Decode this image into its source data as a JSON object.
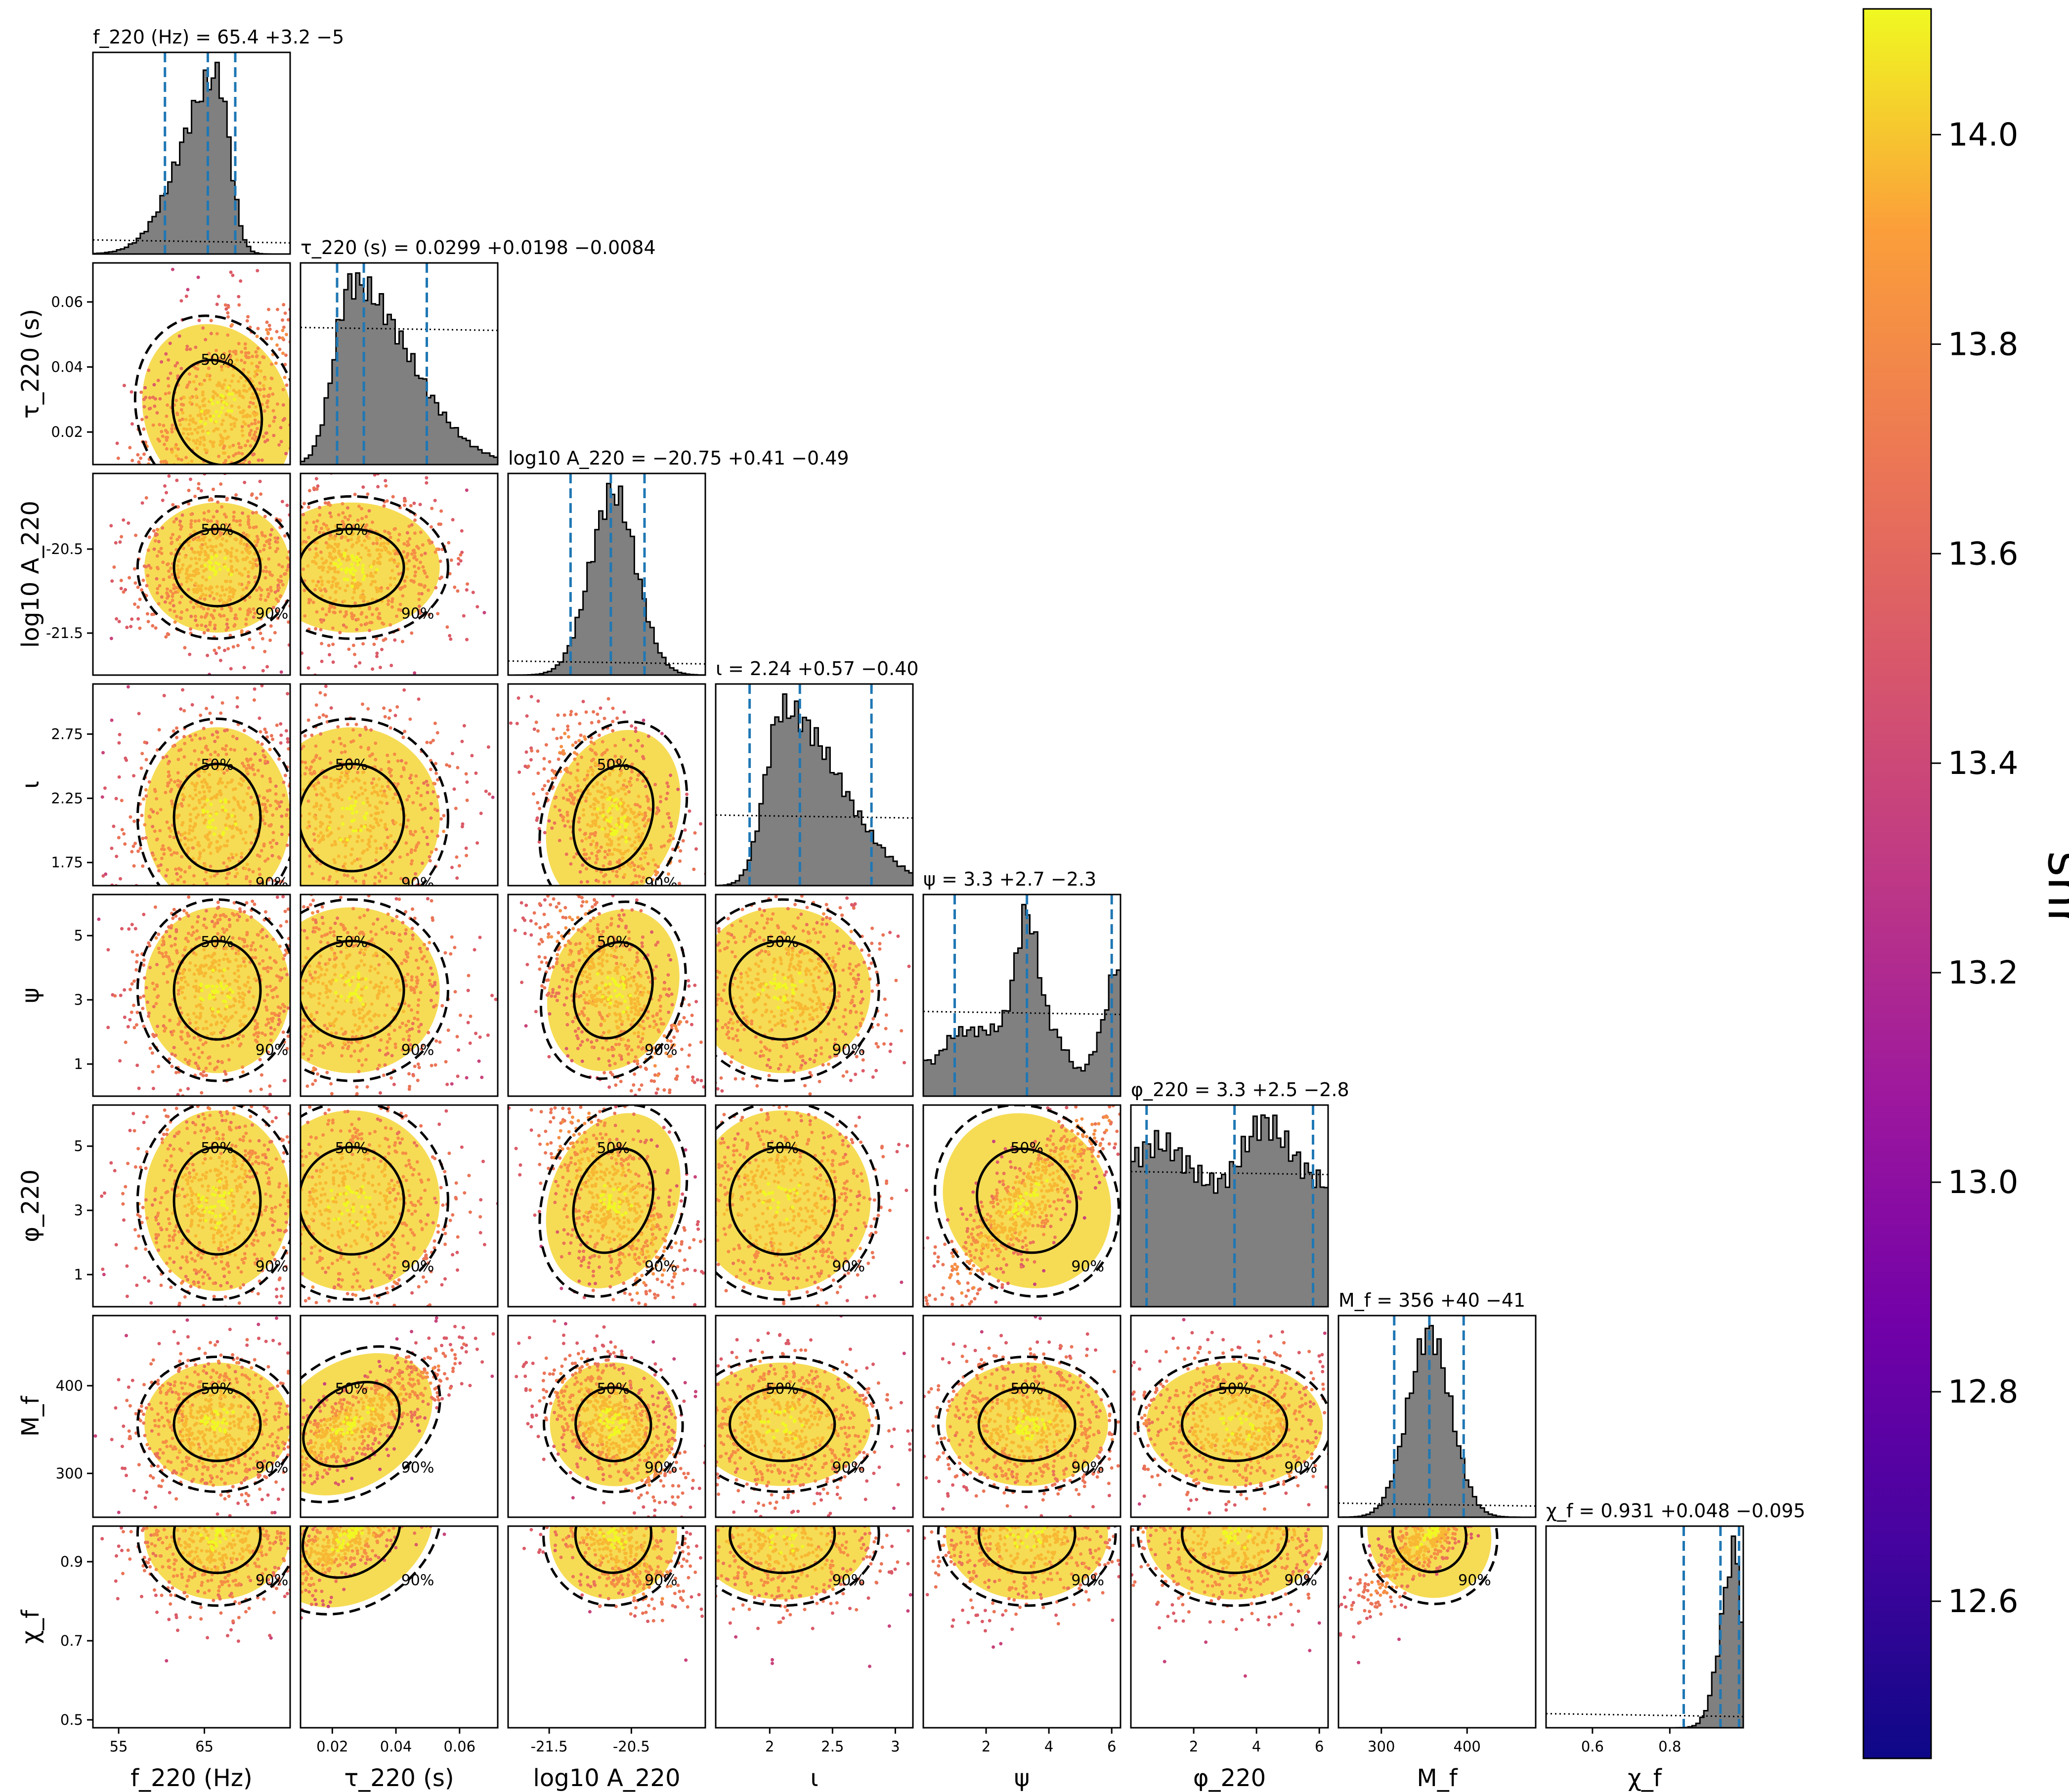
{
  "chart_data": {
    "type": "scatter",
    "variant": "corner-plot",
    "parameters": [
      {
        "key": "f220",
        "label": "f_220 (Hz)",
        "range": [
          52,
          75
        ],
        "ticks": [
          55,
          65
        ],
        "hist_title": "f_220 (Hz) = 65.4 +3.2 −5",
        "median": 65.4,
        "lo": -5,
        "hi": 3.2,
        "hist_shape": "left-skewed",
        "hist_peak": 66.5,
        "hist_width": 3.2
      },
      {
        "key": "tau220",
        "label": "τ_220 (s)",
        "range": [
          0.01,
          0.072
        ],
        "ticks": [
          0.02,
          0.04,
          0.06
        ],
        "hist_title": "τ_220 (s) = 0.0299 +0.0198 −0.0084",
        "median": 0.0299,
        "lo": -0.0084,
        "hi": 0.0198,
        "hist_shape": "right-skewed",
        "hist_peak": 0.026,
        "hist_width": 0.012
      },
      {
        "key": "logA",
        "label": "log10 A_220",
        "range": [
          -22.0,
          -19.6
        ],
        "ticks": [
          -21.5,
          -20.5
        ],
        "hist_title": "log10 A_220 = −20.75 +0.41 −0.49",
        "median": -20.75,
        "lo": -0.49,
        "hi": 0.41,
        "hist_shape": "gaussian",
        "hist_peak": -20.72,
        "hist_width": 0.28
      },
      {
        "key": "iota",
        "label": "ι",
        "range": [
          1.57,
          3.14
        ],
        "ticks": [
          2,
          2.5,
          3
        ],
        "yticks": [
          1.75,
          2.25,
          2.75
        ],
        "hist_title": "ι = 2.24 +0.57 −0.40",
        "median": 2.24,
        "lo": -0.4,
        "hi": 0.57,
        "hist_shape": "right-skewed",
        "hist_peak": 2.1,
        "hist_width": 0.3
      },
      {
        "key": "psi",
        "label": "ψ",
        "range": [
          0,
          6.28
        ],
        "ticks": [
          2,
          4,
          6
        ],
        "yticks": [
          1,
          3,
          5
        ],
        "hist_title": "ψ = 3.3 +2.7 −2.3",
        "median": 3.3,
        "lo": -2.3,
        "hi": 2.7,
        "hist_shape": "bimodal",
        "hist_peak": 3.3,
        "hist_width": 1.0
      },
      {
        "key": "phi220",
        "label": "φ_220",
        "range": [
          0,
          6.28
        ],
        "ticks": [
          2,
          4,
          6
        ],
        "yticks": [
          1,
          3,
          5
        ],
        "hist_title": "φ_220 = 3.3 +2.5 −2.8",
        "median": 3.3,
        "lo": -2.8,
        "hi": 2.5,
        "hist_shape": "flat",
        "hist_peak": 3.3,
        "hist_width": 3.0
      },
      {
        "key": "Mf",
        "label": "M_f",
        "range": [
          250,
          480
        ],
        "ticks": [
          300,
          400
        ],
        "hist_title": "M_f = 356 +40 −41",
        "median": 356,
        "lo": -41,
        "hi": 40,
        "hist_shape": "gaussian",
        "hist_peak": 356,
        "hist_width": 25
      },
      {
        "key": "chif",
        "label": "χ_f",
        "range": [
          0.48,
          0.99
        ],
        "ticks": [
          0.6,
          0.8
        ],
        "yticks": [
          0.5,
          0.7,
          0.9
        ],
        "hist_title": "χ_f = 0.931 +0.048 −0.095",
        "median": 0.931,
        "lo": -0.095,
        "hi": 0.048,
        "hist_shape": "left-edge",
        "hist_peak": 0.97,
        "hist_width": 0.06
      }
    ],
    "contour_labels": [
      "50%",
      "90%"
    ],
    "colorbar": {
      "label": "snr",
      "min": 12.45,
      "max": 14.12,
      "ticks": [
        "12.6",
        "12.8",
        "13.0",
        "13.2",
        "13.4",
        "13.6",
        "13.8",
        "14.0"
      ],
      "colormap": "plasma"
    },
    "colors": {
      "hist_fill": "#808080",
      "quantile_line": "#1f77b4",
      "contour": "#000000"
    }
  }
}
